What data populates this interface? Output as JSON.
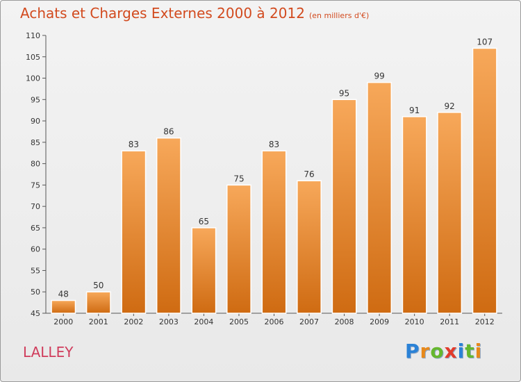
{
  "title": "Achats et Charges Externes 2000 à 2012",
  "subtitle": "(en milliers d'€)",
  "place": "LALLEY",
  "logo": {
    "letters": [
      "P",
      "r",
      "o",
      "x",
      "i",
      "t",
      "i"
    ],
    "colors": [
      "#2b82d6",
      "#e8891a",
      "#66b72e",
      "#e23b2b",
      "#2b82d6",
      "#66b72e",
      "#e8891a"
    ]
  },
  "colors": {
    "title": "#d24a1e",
    "place": "#d03c5c",
    "bar_top": "#f7a85a",
    "bar_bottom": "#cf6b12"
  },
  "chart_data": {
    "type": "bar",
    "categories": [
      "2000",
      "2001",
      "2002",
      "2003",
      "2004",
      "2005",
      "2006",
      "2007",
      "2008",
      "2009",
      "2010",
      "2011",
      "2012"
    ],
    "values": [
      48,
      50,
      83,
      86,
      65,
      75,
      83,
      76,
      95,
      99,
      91,
      92,
      107
    ],
    "title": "Achats et Charges Externes 2000 à 2012",
    "subtitle": "(en milliers d'€)",
    "xlabel": "",
    "ylabel": "",
    "ylim": [
      45,
      110
    ],
    "yticks": [
      45,
      50,
      55,
      60,
      65,
      70,
      75,
      80,
      85,
      90,
      95,
      100,
      105,
      110
    ],
    "grid": false,
    "data_labels": true
  }
}
